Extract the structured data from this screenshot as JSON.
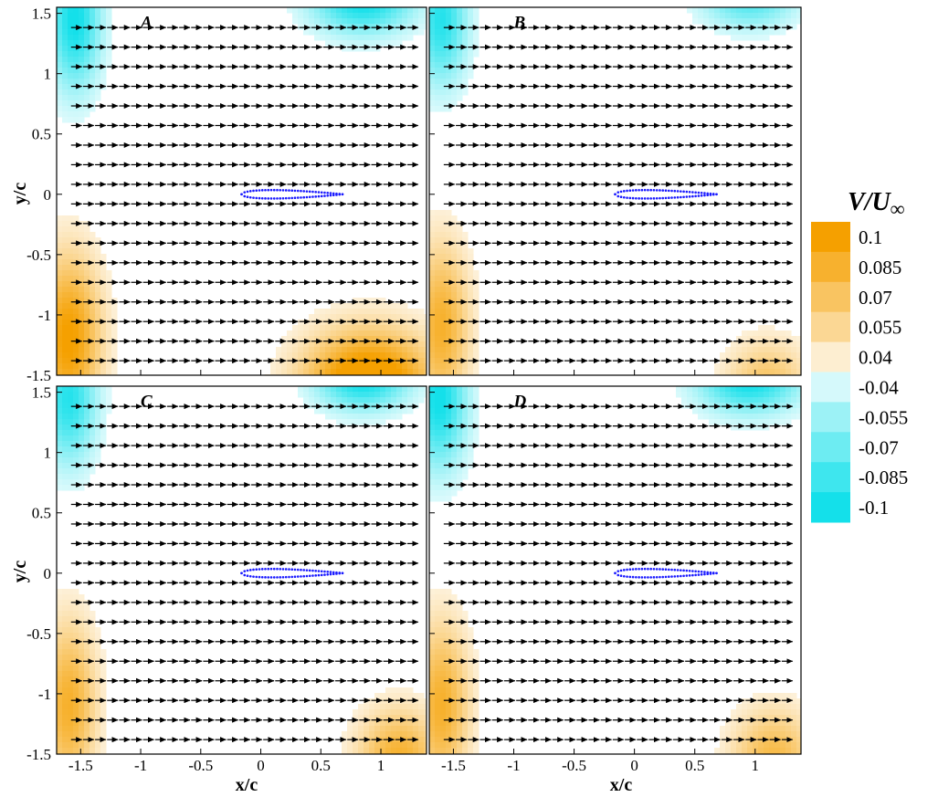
{
  "chart_data": {
    "type": "heatmap",
    "description_kind": "contour-vector",
    "xlabel": "x/c",
    "ylabel": "y/c",
    "xlim": [
      -1.7,
      1.38
    ],
    "ylim": [
      -1.5,
      1.55
    ],
    "x_ticks": [
      -1.5,
      -1,
      -0.5,
      0,
      0.5,
      1
    ],
    "x_tick_labels": [
      "-1.5",
      "-1",
      "-0.5",
      "0",
      "0.5",
      "1"
    ],
    "y_ticks": [
      -1.5,
      -1,
      -0.5,
      0,
      0.5,
      1,
      1.5
    ],
    "y_tick_labels": [
      "-1.5",
      "-1",
      "-0.5",
      "0",
      "0.5",
      "1",
      "1.5"
    ],
    "colorbar": {
      "title": "V/U∞",
      "title_main": "V/U",
      "title_sub": "∞",
      "levels": [
        0.1,
        0.085,
        0.07,
        0.055,
        0.04,
        -0.04,
        -0.055,
        -0.07,
        -0.085,
        -0.1
      ],
      "labels": [
        "0.1",
        "0.085",
        "0.07",
        "0.055",
        "0.04",
        "-0.04",
        "-0.055",
        "-0.07",
        "-0.085",
        "-0.1"
      ],
      "positive_color": "#f5a000",
      "neutral_color": "#ffffff",
      "negative_color": "#14e0ea"
    },
    "vector_field": {
      "direction": "+x",
      "x_start": -1.58,
      "x_step": 0.1,
      "x_count": 29,
      "y_start": -1.38,
      "y_step": 0.1625,
      "y_count": 18,
      "arrow_length": 0.09
    },
    "airfoil": {
      "color": "#1a1aff",
      "leading_edge_x": -0.16,
      "trailing_edge_x": 0.68,
      "max_thickness": 0.07
    },
    "panels": [
      {
        "label": "A",
        "regions": [
          {
            "sign": -1,
            "x": -1.55,
            "y": 1.45,
            "rx": 0.28,
            "ry": 0.75,
            "strength": 1.0
          },
          {
            "sign": -1,
            "x": 0.85,
            "y": 1.6,
            "rx": 0.55,
            "ry": 0.35,
            "strength": 1.0
          },
          {
            "sign": 1,
            "x": -1.6,
            "y": -1.2,
            "rx": 0.35,
            "ry": 0.9,
            "strength": 1.0
          },
          {
            "sign": 1,
            "x": 0.9,
            "y": -1.6,
            "rx": 0.7,
            "ry": 0.6,
            "strength": 1.3
          }
        ]
      },
      {
        "label": "B",
        "regions": [
          {
            "sign": -1,
            "x": -1.6,
            "y": 1.45,
            "rx": 0.28,
            "ry": 0.7,
            "strength": 0.9
          },
          {
            "sign": -1,
            "x": 0.95,
            "y": 1.6,
            "rx": 0.5,
            "ry": 0.3,
            "strength": 0.7
          },
          {
            "sign": 1,
            "x": -1.6,
            "y": -1.1,
            "rx": 0.3,
            "ry": 0.9,
            "strength": 0.8
          },
          {
            "sign": 1,
            "x": 1.1,
            "y": -1.6,
            "rx": 0.45,
            "ry": 0.5,
            "strength": 0.6
          }
        ]
      },
      {
        "label": "C",
        "regions": [
          {
            "sign": -1,
            "x": -1.6,
            "y": 1.45,
            "rx": 0.3,
            "ry": 0.7,
            "strength": 0.9
          },
          {
            "sign": -1,
            "x": 0.85,
            "y": 1.6,
            "rx": 0.5,
            "ry": 0.32,
            "strength": 1.0
          },
          {
            "sign": 1,
            "x": -1.6,
            "y": -1.1,
            "rx": 0.3,
            "ry": 0.9,
            "strength": 0.8
          },
          {
            "sign": 1,
            "x": 1.15,
            "y": -1.55,
            "rx": 0.45,
            "ry": 0.55,
            "strength": 0.8
          }
        ]
      },
      {
        "label": "D",
        "regions": [
          {
            "sign": -1,
            "x": -1.62,
            "y": 1.45,
            "rx": 0.3,
            "ry": 0.75,
            "strength": 1.0
          },
          {
            "sign": -1,
            "x": 0.95,
            "y": 1.6,
            "rx": 0.55,
            "ry": 0.35,
            "strength": 1.0
          },
          {
            "sign": 1,
            "x": -1.6,
            "y": -1.1,
            "rx": 0.3,
            "ry": 0.9,
            "strength": 0.8
          },
          {
            "sign": 1,
            "x": 1.15,
            "y": -1.55,
            "rx": 0.45,
            "ry": 0.55,
            "strength": 0.7
          }
        ]
      }
    ]
  }
}
